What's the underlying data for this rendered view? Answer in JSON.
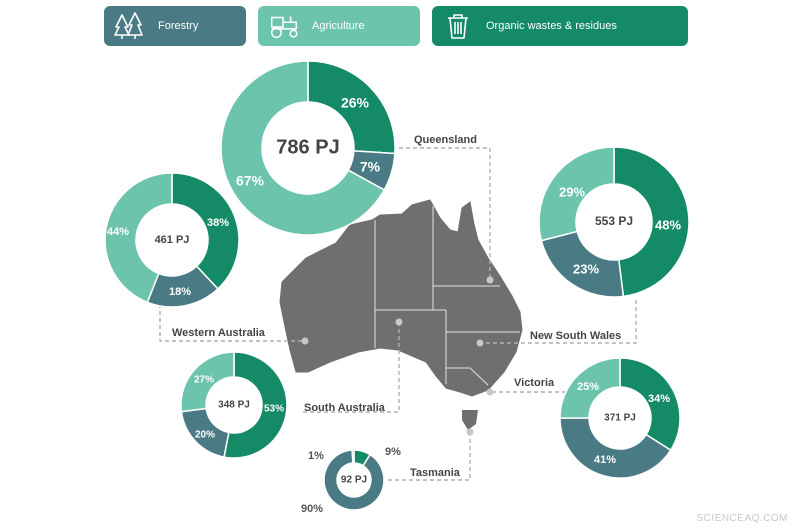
{
  "legend": {
    "items": [
      {
        "label": "Forestry",
        "icon": "trees-icon",
        "color": "#4a7a84"
      },
      {
        "label": "Agriculture",
        "icon": "tractor-icon",
        "color": "#6cc4ac"
      },
      {
        "label": "Organic wastes & residues",
        "icon": "bin-icon",
        "color": "#148a66"
      }
    ]
  },
  "watermark": "SCIENCEAQ.COM",
  "chart_data": {
    "type": "pie",
    "series_colors": {
      "Organic wastes & residues": "#148a66",
      "Forestry": "#4a7a84",
      "Agriculture": "#6cc4ac"
    },
    "charts": [
      {
        "state": "Queensland",
        "total": "786 PJ",
        "values": {
          "Organic wastes & residues": 26,
          "Forestry": 7,
          "Agriculture": 67
        }
      },
      {
        "state": "Western Australia",
        "total": "461 PJ",
        "values": {
          "Organic wastes & residues": 38,
          "Forestry": 18,
          "Agriculture": 44
        }
      },
      {
        "state": "New South Wales",
        "total": "553 PJ",
        "values": {
          "Organic wastes & residues": 48,
          "Forestry": 23,
          "Agriculture": 29
        }
      },
      {
        "state": "South Australia",
        "total": "348 PJ",
        "values": {
          "Organic wastes & residues": 53,
          "Forestry": 20,
          "Agriculture": 27
        }
      },
      {
        "state": "Victoria",
        "total": "371 PJ",
        "values": {
          "Organic wastes & residues": 34,
          "Forestry": 41,
          "Agriculture": 25
        }
      },
      {
        "state": "Tasmania",
        "total": "92 PJ",
        "values": {
          "Organic wastes & residues": 9,
          "Forestry": 90,
          "Agriculture": 1
        }
      }
    ]
  }
}
